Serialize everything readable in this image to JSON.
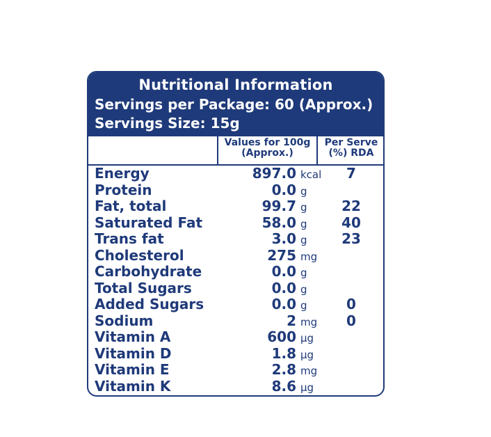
{
  "header": {
    "title": "Nutritional Information",
    "servings_per_package": "Servings per Package: 60 (Approx.)",
    "serving_size": "Servings Size: 15g"
  },
  "columns": {
    "values": "Values for 100g (Approx.)",
    "rda": "Per Serve (%) RDA"
  },
  "rows": [
    {
      "name": "Energy",
      "value": "897.0",
      "unit": "kcal",
      "rda": "7"
    },
    {
      "name": "Protein",
      "value": "0.0",
      "unit": "g",
      "rda": ""
    },
    {
      "name": "Fat, total",
      "value": "99.7",
      "unit": "g",
      "rda": "22"
    },
    {
      "name": "Saturated Fat",
      "value": "58.0",
      "unit": "g",
      "rda": "40"
    },
    {
      "name": "Trans fat",
      "value": "3.0",
      "unit": "g",
      "rda": "23"
    },
    {
      "name": "Cholesterol",
      "value": "275",
      "unit": "mg",
      "rda": ""
    },
    {
      "name": "Carbohydrate",
      "value": "0.0",
      "unit": "g",
      "rda": ""
    },
    {
      "name": "Total Sugars",
      "value": "0.0",
      "unit": "g",
      "rda": ""
    },
    {
      "name": "Added Sugars",
      "value": "0.0",
      "unit": "g",
      "rda": "0"
    },
    {
      "name": "Sodium",
      "value": "2",
      "unit": "mg",
      "rda": "0"
    },
    {
      "name": "Vitamin A",
      "value": "600",
      "unit": "µg",
      "rda": ""
    },
    {
      "name": "Vitamin D",
      "value": "1.8",
      "unit": "µg",
      "rda": ""
    },
    {
      "name": "Vitamin E",
      "value": "2.8",
      "unit": "mg",
      "rda": ""
    },
    {
      "name": "Vitamin K",
      "value": "8.6",
      "unit": "µg",
      "rda": ""
    }
  ]
}
